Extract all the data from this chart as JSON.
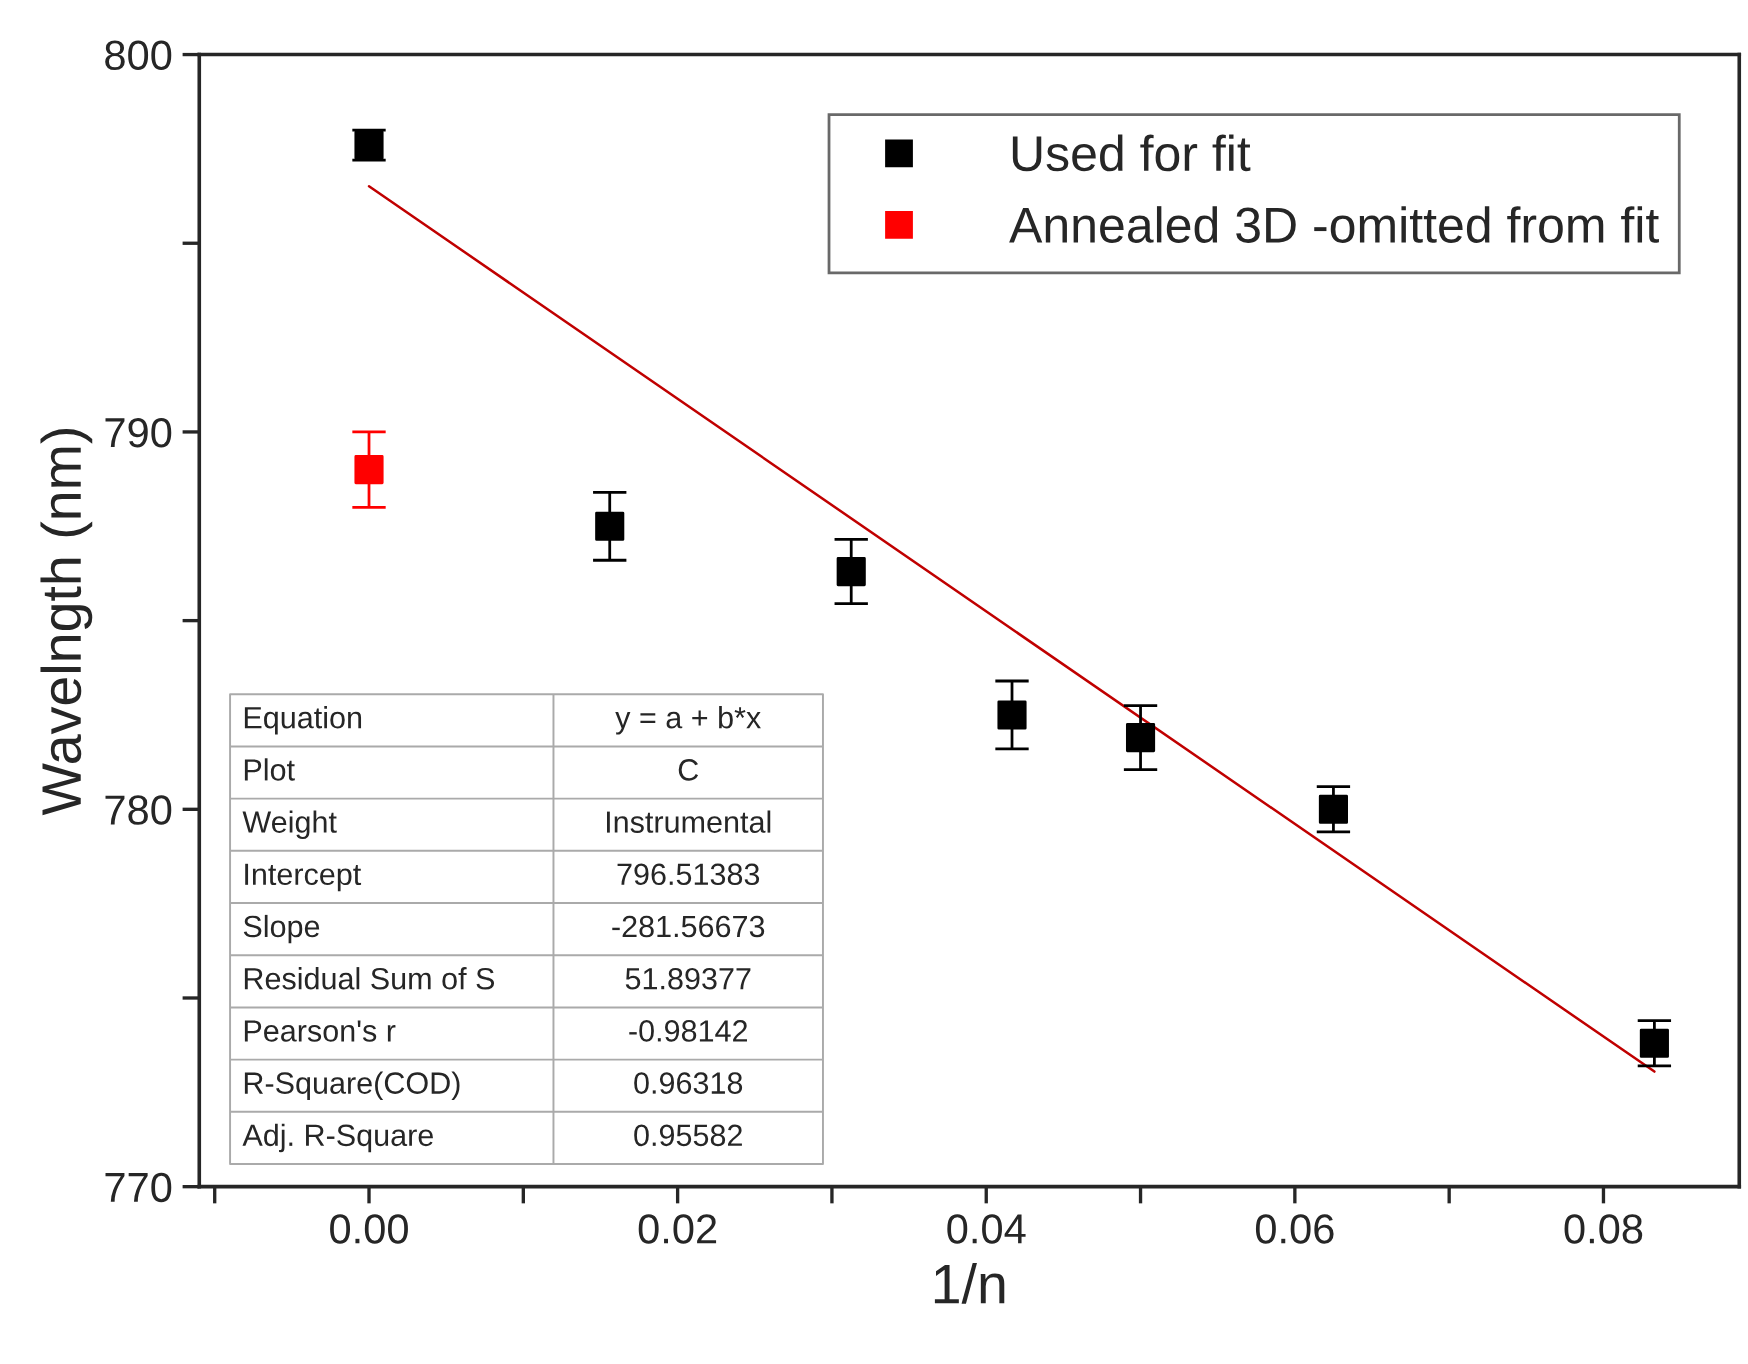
{
  "chart_data": {
    "type": "scatter",
    "xlabel": "1/n",
    "ylabel": "Wavelngth (nm)",
    "xlim": [
      -0.011,
      0.0888
    ],
    "ylim": [
      770,
      800
    ],
    "xticks": [
      {
        "value": -0.01,
        "label": null
      },
      {
        "value": 0,
        "label": "0.00"
      },
      {
        "value": 0.01,
        "label": null
      },
      {
        "value": 0.02,
        "label": "0.02"
      },
      {
        "value": 0.03,
        "label": null
      },
      {
        "value": 0.04,
        "label": "0.04"
      },
      {
        "value": 0.05,
        "label": null
      },
      {
        "value": 0.06,
        "label": "0.06"
      },
      {
        "value": 0.07,
        "label": null
      },
      {
        "value": 0.08,
        "label": "0.08"
      }
    ],
    "yticks": [
      770,
      {
        "value": 775,
        "label": null
      },
      780,
      {
        "value": 785,
        "label": null
      },
      790,
      {
        "value": 795,
        "label": null
      },
      800
    ],
    "marker": "square",
    "legend": "top right",
    "grid": false,
    "series": [
      {
        "name": "Used for fit",
        "color": "#000000",
        "x": [
          0,
          0.0156,
          0.03125,
          0.04167,
          0.05,
          0.0625,
          0.0833
        ],
        "values": [
          797.6,
          787.5,
          786.3,
          782.5,
          781.9,
          780.0,
          773.8
        ],
        "errors": [
          0.4,
          0.9,
          0.85,
          0.9,
          0.85,
          0.6,
          0.6
        ]
      },
      {
        "name": "Annealed 3D -omitted from fit",
        "color": "#ff0000",
        "x": [
          0
        ],
        "values": [
          789.0
        ],
        "errors": [
          1.0
        ]
      },
      {
        "type": "line",
        "marker": "none",
        "color": "#c00000",
        "x": [
          0,
          0.0833
        ],
        "values": [
          796.51,
          773.05
        ]
      }
    ],
    "annotations": [
      "Equation",
      "y = a + b*x",
      "Plot",
      "C",
      "Weight",
      "Instrumental",
      "Intercept",
      "796.51383",
      "Slope",
      "-281.56673",
      "Residual Sum of S",
      "51.89377",
      "Pearson's r",
      "-0.98142",
      "R-Square(COD)",
      "0.96318",
      "Adj. R-Square",
      "0.95582"
    ]
  }
}
